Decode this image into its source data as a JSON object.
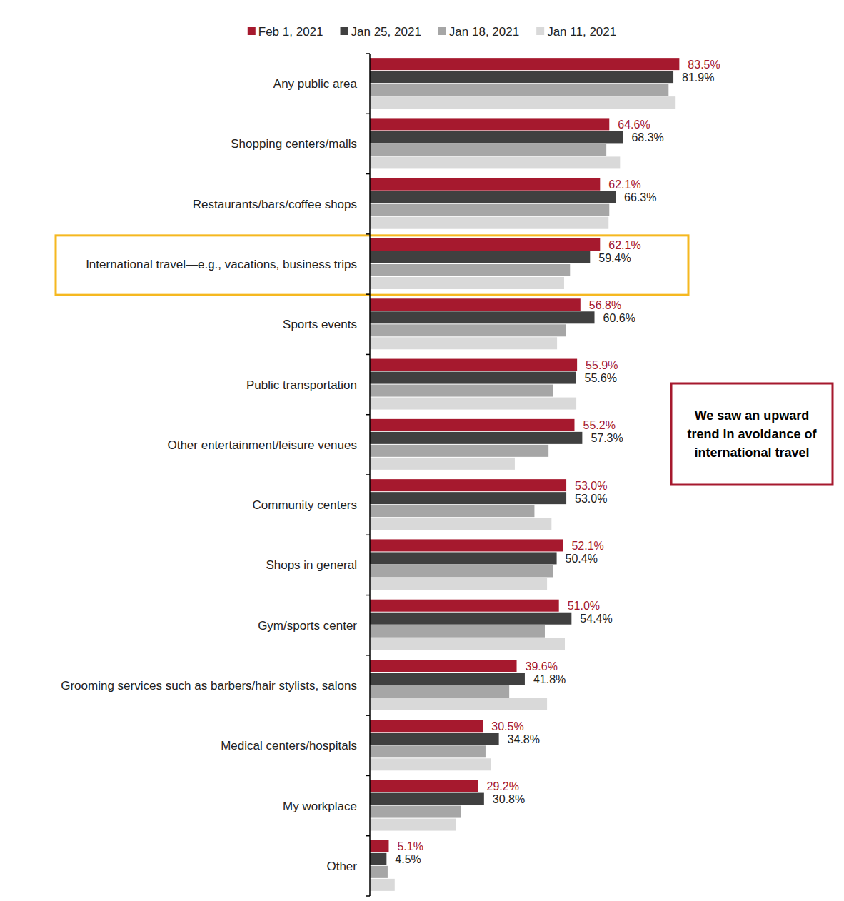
{
  "chart_data": {
    "type": "bar",
    "orientation": "horizontal",
    "tick_labels": "y",
    "grid": false,
    "legend": "top",
    "xlim": [
      0,
      100
    ],
    "annotations": [
      "We saw an upward trend in avoidance of international travel"
    ],
    "categories": [
      "Any public area",
      "Shopping centers/malls",
      "Restaurants/bars/coffee shops",
      "International travel—e.g., vacations, business trips",
      "Sports events",
      "Public transportation",
      "Other entertainment/leisure venues",
      "Community centers",
      "Shops in general",
      "Gym/sports center",
      "Grooming services such as barbers/hair stylists, salons",
      "Medical centers/hospitals",
      "My workplace",
      "Other"
    ],
    "series": [
      {
        "name": "Feb 1, 2021",
        "color": "#a6192e",
        "data_labels": true,
        "values": [
          83.5,
          64.6,
          62.1,
          62.1,
          56.8,
          55.9,
          55.2,
          53.0,
          52.1,
          51.0,
          39.6,
          30.5,
          29.2,
          5.1
        ],
        "value_labels": [
          "83.5%",
          "64.6%",
          "62.1%",
          "62.1%",
          "56.8%",
          "55.9%",
          "55.2%",
          "53.0%",
          "52.1%",
          "51.0%",
          "39.6%",
          "30.5%",
          "29.2%",
          "5.1%"
        ]
      },
      {
        "name": "Jan 25, 2021",
        "color": "#404040",
        "data_labels": true,
        "values": [
          81.9,
          68.3,
          66.3,
          59.4,
          60.6,
          55.6,
          57.3,
          53.0,
          50.4,
          54.4,
          41.8,
          34.8,
          30.8,
          4.5
        ],
        "value_labels": [
          "81.9%",
          "68.3%",
          "66.3%",
          "59.4%",
          "60.6%",
          "55.6%",
          "57.3%",
          "53.0%",
          "50.4%",
          "54.4%",
          "41.8%",
          "34.8%",
          "30.8%",
          "4.5%"
        ]
      },
      {
        "name": "Jan 18, 2021",
        "color": "#a6a6a6",
        "data_labels": false,
        "values": [
          80.6,
          63.8,
          64.6,
          54.0,
          52.8,
          49.4,
          48.2,
          44.4,
          49.4,
          47.2,
          37.6,
          31.2,
          24.5,
          4.8
        ]
      },
      {
        "name": "Jan 11, 2021",
        "color": "#d9d9d9",
        "data_labels": false,
        "values": [
          82.5,
          67.5,
          64.4,
          52.4,
          50.5,
          55.7,
          39.1,
          49.0,
          47.8,
          52.6,
          47.8,
          32.6,
          23.3,
          6.7
        ]
      }
    ]
  }
}
